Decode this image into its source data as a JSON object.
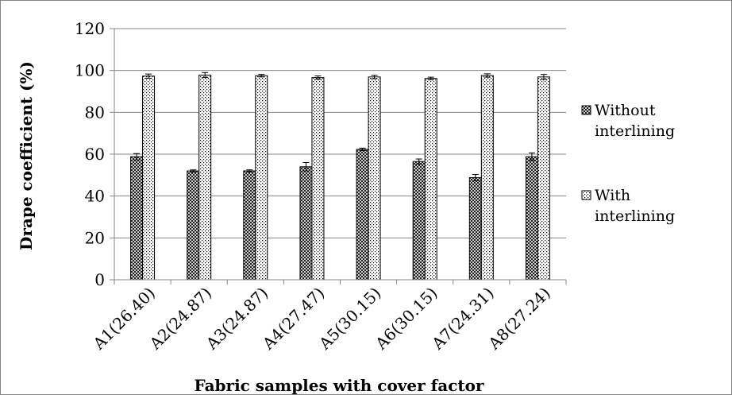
{
  "chart_data": {
    "type": "bar",
    "title": "",
    "xlabel": "Fabric samples with cover factor",
    "ylabel": "Drape coefficient (%)",
    "ylim": [
      0,
      120
    ],
    "yticks": [
      0,
      20,
      40,
      60,
      80,
      100,
      120
    ],
    "grid": true,
    "legend_position": "right",
    "categories": [
      "A1(26.40)",
      "A2(24.87)",
      "A3(24.87)",
      "A4(27.47)",
      "A5(30.15)",
      "A6(30.15)",
      "A7(24.31)",
      "A8(27.24)"
    ],
    "series": [
      {
        "name": "Without interlining",
        "legend_lines": [
          "Without",
          "interlining"
        ],
        "pattern": "crosshatch",
        "values": [
          58.8,
          52.0,
          52.0,
          54.0,
          62.3,
          56.5,
          48.8,
          58.8
        ],
        "errors": [
          1.5,
          0.5,
          0.5,
          2.0,
          0.6,
          1.2,
          1.5,
          1.8
        ]
      },
      {
        "name": "With interlining",
        "legend_lines": [
          "With",
          "interlining"
        ],
        "pattern": "dots",
        "values": [
          97.3,
          97.8,
          97.5,
          96.6,
          96.9,
          96.2,
          97.6,
          96.9
        ],
        "errors": [
          1.0,
          1.2,
          0.6,
          0.8,
          0.8,
          0.6,
          0.8,
          1.2
        ]
      }
    ]
  }
}
